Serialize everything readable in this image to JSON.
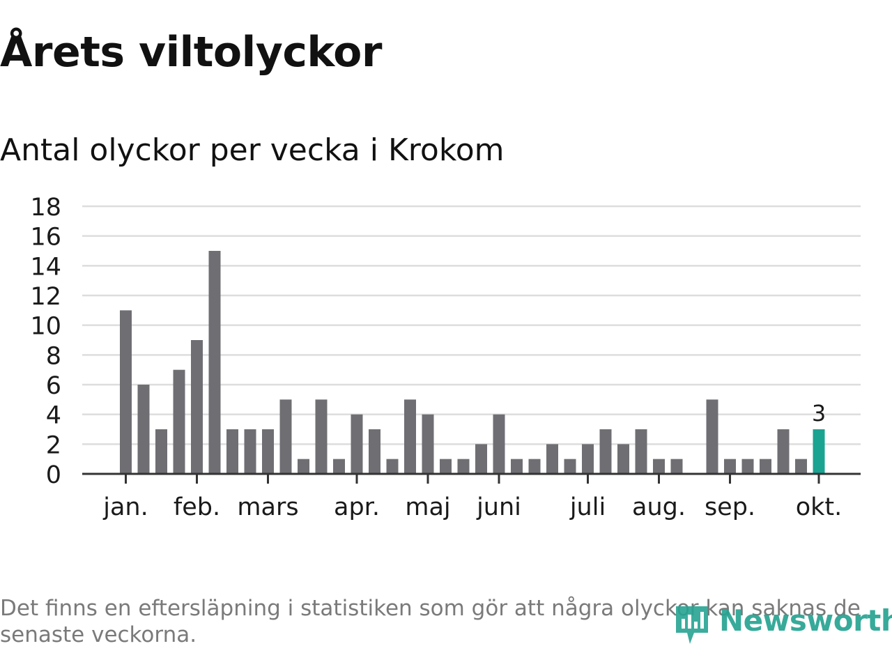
{
  "title": "Årets viltolyckor",
  "subtitle": "Antal olyckor per vecka i Krokom",
  "footnote": "Det finns en eftersläpning i statistiken som gör att några olyckor kan saknas de senaste veckorna.",
  "logo": {
    "text": "Newsworthy",
    "icon": "newsworthy-logo-icon"
  },
  "colors": {
    "bar": "#6f6e73",
    "highlight": "#1aa391",
    "grid": "#dddddd",
    "axis": "#333333",
    "text": "#1a1a1a"
  },
  "chart_data": {
    "type": "bar",
    "title": "Antal olyckor per vecka i Krokom",
    "xlabel": "",
    "ylabel": "",
    "ylim": [
      0,
      18
    ],
    "yticks": [
      "0",
      "2",
      "4",
      "6",
      "8",
      "10",
      "12",
      "14",
      "16",
      "18"
    ],
    "grid": true,
    "weeks": [
      1,
      2,
      3,
      4,
      5,
      6,
      7,
      8,
      9,
      10,
      11,
      12,
      13,
      14,
      15,
      16,
      17,
      18,
      19,
      20,
      21,
      22,
      23,
      24,
      25,
      26,
      27,
      28,
      29,
      30,
      31,
      32,
      33,
      34,
      35,
      36,
      37,
      38,
      39,
      40
    ],
    "values": [
      11,
      6,
      3,
      7,
      9,
      15,
      3,
      3,
      3,
      5,
      1,
      5,
      1,
      4,
      3,
      1,
      5,
      4,
      1,
      1,
      2,
      4,
      1,
      1,
      2,
      1,
      2,
      3,
      2,
      3,
      1,
      1,
      0,
      5,
      1,
      1,
      1,
      3,
      1,
      3
    ],
    "highlight_index": 39,
    "highlight_label": "3",
    "month_labels": [
      {
        "label": "jan.",
        "week_index": 0
      },
      {
        "label": "feb.",
        "week_index": 4
      },
      {
        "label": "mars",
        "week_index": 8
      },
      {
        "label": "apr.",
        "week_index": 13
      },
      {
        "label": "maj",
        "week_index": 17
      },
      {
        "label": "juni",
        "week_index": 21
      },
      {
        "label": "juli",
        "week_index": 26
      },
      {
        "label": "aug.",
        "week_index": 30
      },
      {
        "label": "sep.",
        "week_index": 34
      },
      {
        "label": "okt.",
        "week_index": 39
      }
    ]
  }
}
